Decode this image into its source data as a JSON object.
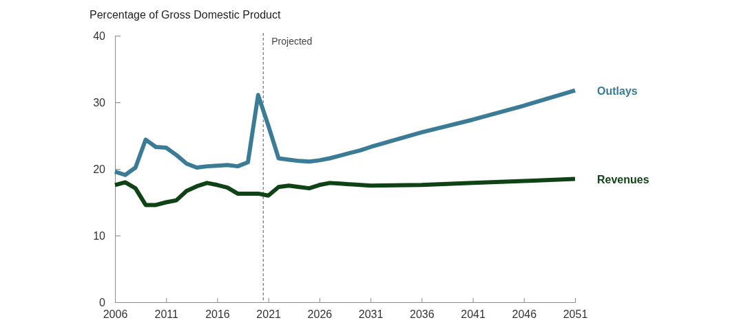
{
  "chart_data": {
    "type": "line",
    "ylabel": "Percentage of Gross Domestic Product",
    "xlim": [
      2006,
      2051
    ],
    "xticks": [
      2006,
      2011,
      2016,
      2021,
      2026,
      2031,
      2036,
      2041,
      2046,
      2051
    ],
    "ylim": [
      0,
      40
    ],
    "yticks": [
      0,
      10,
      20,
      30,
      40
    ],
    "grid": false,
    "legend": false,
    "line_style": "solid",
    "marker": "none",
    "ref_lines": [
      {
        "axis": "x",
        "value": 2020.5,
        "label": "Projected",
        "line_style": "dashed",
        "color": "#555555"
      }
    ],
    "series": [
      {
        "name": "Outlays",
        "color": "#3b7b96",
        "x": [
          2006,
          2007,
          2008,
          2009,
          2010,
          2011,
          2012,
          2013,
          2014,
          2015,
          2016,
          2017,
          2018,
          2019,
          2020,
          2021,
          2022,
          2023,
          2024,
          2025,
          2026,
          2027,
          2028,
          2029,
          2030,
          2031,
          2033,
          2036,
          2041,
          2046,
          2051
        ],
        "values": [
          19.6,
          19.1,
          20.2,
          24.4,
          23.3,
          23.2,
          22.1,
          20.8,
          20.2,
          20.4,
          20.5,
          20.6,
          20.4,
          21.0,
          31.1,
          26.5,
          21.6,
          21.4,
          21.2,
          21.1,
          21.3,
          21.6,
          22.0,
          22.4,
          22.8,
          23.3,
          24.2,
          25.5,
          27.4,
          29.5,
          31.8
        ]
      },
      {
        "name": "Revenues",
        "color": "#0f4214",
        "x": [
          2006,
          2007,
          2008,
          2009,
          2010,
          2011,
          2012,
          2013,
          2014,
          2015,
          2016,
          2017,
          2018,
          2019,
          2020,
          2021,
          2022,
          2023,
          2024,
          2025,
          2026,
          2027,
          2028,
          2030,
          2031,
          2036,
          2041,
          2046,
          2051
        ],
        "values": [
          17.6,
          18.0,
          17.1,
          14.6,
          14.6,
          15.0,
          15.3,
          16.7,
          17.4,
          17.9,
          17.6,
          17.2,
          16.3,
          16.3,
          16.3,
          16.0,
          17.3,
          17.5,
          17.3,
          17.1,
          17.6,
          17.9,
          17.8,
          17.6,
          17.5,
          17.6,
          17.9,
          18.2,
          18.5
        ]
      }
    ]
  }
}
